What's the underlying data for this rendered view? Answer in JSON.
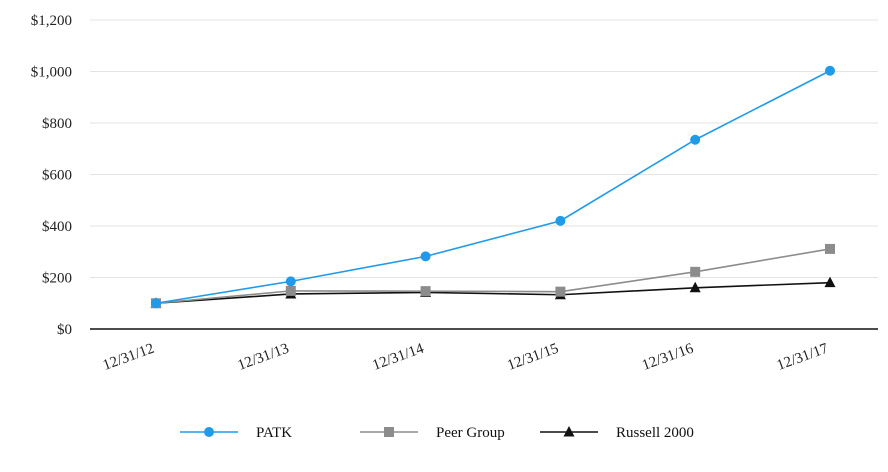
{
  "chart_data": {
    "type": "line",
    "categories": [
      "12/31/12",
      "12/31/13",
      "12/31/14",
      "12/31/15",
      "12/31/16",
      "12/31/17"
    ],
    "series": [
      {
        "name": "PATK",
        "values": [
          100,
          185,
          282,
          420,
          735,
          1003
        ],
        "color": "#1f9bea",
        "marker": "circle"
      },
      {
        "name": "Peer Group",
        "values": [
          100,
          148,
          147,
          145,
          222,
          311
        ],
        "color": "#8c8c8c",
        "marker": "square"
      },
      {
        "name": "Russell 2000",
        "values": [
          100,
          136,
          142,
          133,
          160,
          180
        ],
        "color": "#111111",
        "marker": "triangle"
      }
    ],
    "ylim": [
      0,
      1200
    ],
    "yticks": [
      0,
      200,
      400,
      600,
      800,
      1000,
      1200
    ],
    "ytick_labels": [
      "$0",
      "$200",
      "$400",
      "$600",
      "$800",
      "$1,000",
      "$1,200"
    ],
    "grid": true,
    "legend_position": "bottom",
    "title": "",
    "xlabel": "",
    "ylabel": ""
  }
}
